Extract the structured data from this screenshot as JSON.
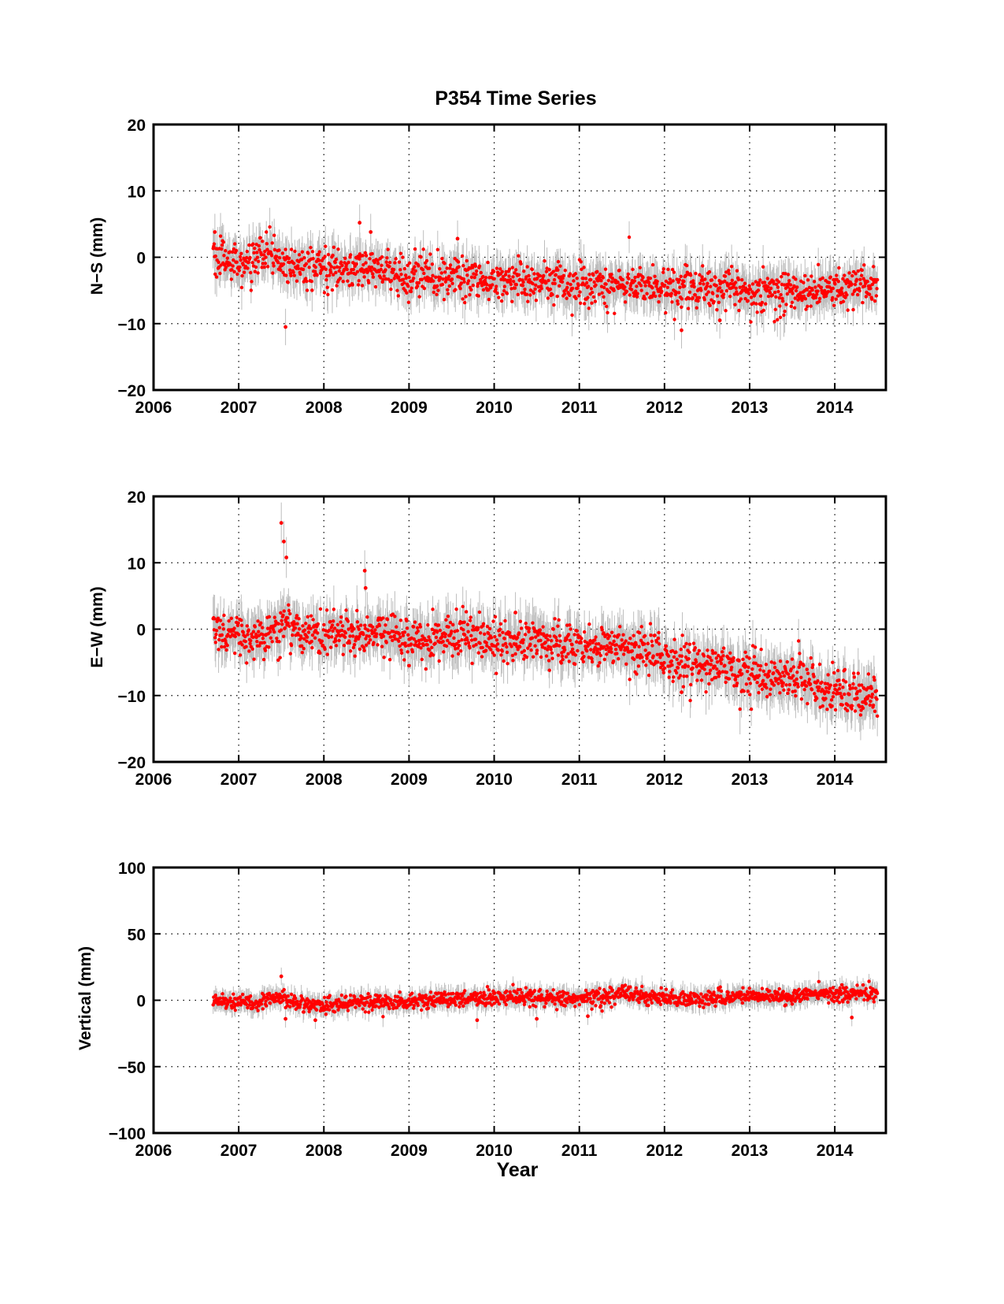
{
  "figure": {
    "title": "P354 Time Series",
    "xlabel": "Year"
  },
  "style": {
    "point_color": "#ff0000",
    "errorbar_color": "#bdbdbd",
    "axis_color": "#000000",
    "grid": "dotted"
  },
  "chart_data": [
    {
      "type": "scatter",
      "ylabel": "N−S (mm)",
      "xlim": [
        2006,
        2014.6
      ],
      "ylim": [
        -20,
        20
      ],
      "xticks": [
        2006,
        2007,
        2008,
        2009,
        2010,
        2011,
        2012,
        2013,
        2014
      ],
      "yticks": [
        -20,
        -10,
        0,
        10,
        20
      ],
      "xtick_labels": [
        "2006",
        "2007",
        "2008",
        "2009",
        "2010",
        "2011",
        "2012",
        "2013",
        "2014"
      ],
      "ytick_labels": [
        "−20",
        "−10",
        "0",
        "10",
        "20"
      ],
      "grid": true,
      "series": [
        {
          "x": [
            2006.7,
            2006.8,
            2006.9,
            2007.0,
            2007.2,
            2007.4,
            2007.5,
            2007.6,
            2007.8,
            2008.0,
            2008.2,
            2008.4,
            2008.5,
            2008.6,
            2008.8,
            2009.0,
            2009.25,
            2009.5,
            2009.75,
            2010.0,
            2010.25,
            2010.5,
            2010.75,
            2011.0,
            2011.25,
            2011.5,
            2011.75,
            2012.0,
            2012.25,
            2012.5,
            2012.75,
            2013.0,
            2013.25,
            2013.5,
            2013.75,
            2014.0,
            2014.25,
            2014.5
          ],
          "y": [
            1.0,
            -0.5,
            -1.0,
            -0.5,
            -0.5,
            0.5,
            -1.0,
            -1.5,
            -2.0,
            -1.5,
            -1.5,
            -2.0,
            -1.0,
            -2.0,
            -2.5,
            -2.8,
            -3.0,
            -3.0,
            -3.2,
            -3.5,
            -3.5,
            -3.8,
            -3.6,
            -3.8,
            -4.0,
            -4.0,
            -4.3,
            -4.6,
            -4.8,
            -4.5,
            -4.8,
            -5.0,
            -5.0,
            -4.8,
            -5.0,
            -4.8,
            -4.3,
            -4.0
          ],
          "noise": 1.5,
          "error": 2.5
        }
      ],
      "outliers": [
        {
          "x": 2007.55,
          "y": -10.5
        },
        {
          "x": 2008.42,
          "y": 5.2
        },
        {
          "x": 2008.55,
          "y": 3.8
        },
        {
          "x": 2009.57,
          "y": 2.8
        },
        {
          "x": 2012.2,
          "y": -11.0
        },
        {
          "x": 2012.65,
          "y": -9.5
        },
        {
          "x": 2006.72,
          "y": 3.8
        }
      ]
    },
    {
      "type": "scatter",
      "ylabel": "E−W (mm)",
      "xlim": [
        2006,
        2014.6
      ],
      "ylim": [
        -20,
        20
      ],
      "xticks": [
        2006,
        2007,
        2008,
        2009,
        2010,
        2011,
        2012,
        2013,
        2014
      ],
      "yticks": [
        -20,
        -10,
        0,
        10,
        20
      ],
      "xtick_labels": [
        "2006",
        "2007",
        "2008",
        "2009",
        "2010",
        "2011",
        "2012",
        "2013",
        "2014"
      ],
      "ytick_labels": [
        "−20",
        "−10",
        "0",
        "10",
        "20"
      ],
      "grid": true,
      "series": [
        {
          "x": [
            2006.7,
            2007.0,
            2007.25,
            2007.5,
            2007.75,
            2008.0,
            2008.25,
            2008.5,
            2008.75,
            2009.0,
            2009.25,
            2009.5,
            2009.75,
            2010.0,
            2010.25,
            2010.5,
            2010.75,
            2011.0,
            2011.25,
            2011.5,
            2011.75,
            2012.0,
            2012.25,
            2012.5,
            2012.75,
            2013.0,
            2013.25,
            2013.5,
            2013.75,
            2014.0,
            2014.25,
            2014.5
          ],
          "y": [
            0.0,
            -0.8,
            -1.5,
            1.0,
            -0.5,
            -1.0,
            -0.5,
            -0.5,
            -1.0,
            -1.5,
            -1.0,
            -1.0,
            -1.2,
            -1.5,
            -2.0,
            -2.0,
            -2.5,
            -2.5,
            -3.0,
            -3.0,
            -3.5,
            -4.5,
            -5.0,
            -5.5,
            -5.8,
            -6.5,
            -7.0,
            -7.5,
            -8.0,
            -9.5,
            -10.0,
            -10.5
          ],
          "noise": 1.6,
          "error": 2.8
        }
      ],
      "outliers": [
        {
          "x": 2007.5,
          "y": 16.0
        },
        {
          "x": 2007.53,
          "y": 13.2
        },
        {
          "x": 2007.56,
          "y": 10.8
        },
        {
          "x": 2008.48,
          "y": 8.8
        },
        {
          "x": 2008.49,
          "y": 6.2
        },
        {
          "x": 2009.0,
          "y": -5.5
        },
        {
          "x": 2010.25,
          "y": 2.5
        },
        {
          "x": 2012.2,
          "y": -9.5
        }
      ]
    },
    {
      "type": "scatter",
      "ylabel": "Vertical (mm)",
      "xlim": [
        2006,
        2014.6
      ],
      "ylim": [
        -100,
        100
      ],
      "xticks": [
        2006,
        2007,
        2008,
        2009,
        2010,
        2011,
        2012,
        2013,
        2014
      ],
      "yticks": [
        -100,
        -50,
        0,
        50,
        100
      ],
      "xtick_labels": [
        "2006",
        "2007",
        "2008",
        "2009",
        "2010",
        "2011",
        "2012",
        "2013",
        "2014"
      ],
      "ytick_labels": [
        "−100",
        "−50",
        "0",
        "50",
        "100"
      ],
      "grid": true,
      "series": [
        {
          "x": [
            2006.7,
            2007.0,
            2007.25,
            2007.5,
            2007.75,
            2008.0,
            2008.25,
            2008.5,
            2008.75,
            2009.0,
            2009.25,
            2009.5,
            2009.75,
            2010.0,
            2010.25,
            2010.5,
            2010.75,
            2011.0,
            2011.25,
            2011.5,
            2011.75,
            2012.0,
            2012.25,
            2012.5,
            2012.75,
            2013.0,
            2013.25,
            2013.5,
            2013.75,
            2014.0,
            2014.25,
            2014.5
          ],
          "y": [
            0,
            -1,
            -2,
            2,
            -3,
            -3,
            -3,
            -1,
            -2,
            -1,
            0,
            1,
            1,
            2,
            2,
            2,
            1,
            1,
            2,
            5,
            3,
            2,
            1,
            2,
            2,
            3,
            3,
            3,
            4,
            5,
            5,
            6
          ],
          "noise": 3.0,
          "error": 6.0
        }
      ],
      "outliers": [
        {
          "x": 2007.5,
          "y": 18
        },
        {
          "x": 2007.55,
          "y": -14
        },
        {
          "x": 2007.9,
          "y": -15
        },
        {
          "x": 2009.8,
          "y": -15
        },
        {
          "x": 2010.5,
          "y": -14
        },
        {
          "x": 2014.2,
          "y": -13
        },
        {
          "x": 2011.1,
          "y": -12
        }
      ]
    }
  ]
}
